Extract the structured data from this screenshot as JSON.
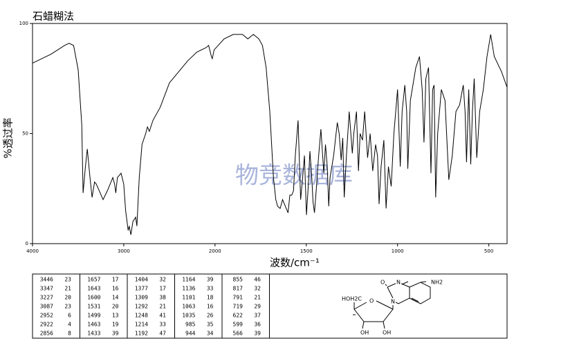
{
  "chart_data": {
    "type": "line",
    "title": "石蜡糊法",
    "watermark": "物竞数据库",
    "xlabel": "波数/cm⁻¹",
    "ylabel": "%透过率",
    "xlim": [
      4000,
      400
    ],
    "xticks": [
      4000,
      3000,
      2000,
      1500,
      1000,
      500
    ],
    "ylim": [
      0,
      100
    ],
    "yticks": [
      0,
      50,
      100
    ],
    "color": "#000000",
    "x": [
      4000,
      3800,
      3650,
      3600,
      3550,
      3500,
      3460,
      3446,
      3420,
      3400,
      3370,
      3347,
      3320,
      3300,
      3227,
      3180,
      3120,
      3100,
      3087,
      3070,
      3030,
      3000,
      2980,
      2952,
      2940,
      2922,
      2900,
      2870,
      2856,
      2830,
      2800,
      2760,
      2740,
      2720,
      2680,
      2600,
      2500,
      2400,
      2300,
      2200,
      2100,
      2070,
      2040,
      2030,
      2010,
      1950,
      1900,
      1850,
      1820,
      1790,
      1760,
      1740,
      1720,
      1700,
      1680,
      1667,
      1657,
      1643,
      1630,
      1620,
      1600,
      1590,
      1580,
      1570,
      1560,
      1545,
      1531,
      1520,
      1510,
      1499,
      1490,
      1480,
      1470,
      1463,
      1455,
      1445,
      1433,
      1420,
      1404,
      1395,
      1385,
      1377,
      1370,
      1350,
      1330,
      1320,
      1309,
      1300,
      1292,
      1280,
      1265,
      1248,
      1240,
      1225,
      1214,
      1205,
      1192,
      1180,
      1164,
      1150,
      1136,
      1120,
      1110,
      1101,
      1090,
      1075,
      1063,
      1050,
      1035,
      1020,
      1000,
      985,
      975,
      960,
      950,
      944,
      930,
      900,
      880,
      865,
      855,
      845,
      830,
      817,
      808,
      800,
      791,
      780,
      760,
      740,
      719,
      700,
      680,
      660,
      640,
      630,
      622,
      610,
      599,
      590,
      580,
      566,
      550,
      530,
      510,
      490,
      470,
      430,
      400
    ],
    "values": [
      82,
      86,
      90,
      91,
      90,
      79,
      54,
      23,
      35,
      43,
      30,
      21,
      28,
      27,
      20,
      24,
      30,
      27,
      23,
      30,
      32,
      27,
      15,
      6,
      8,
      4,
      10,
      12,
      8,
      30,
      45,
      50,
      53,
      51,
      56,
      62,
      73,
      78,
      83,
      87,
      89,
      90,
      85,
      84,
      88,
      93,
      95,
      95,
      93,
      95,
      93,
      90,
      80,
      60,
      30,
      20,
      17,
      16,
      20,
      18,
      14,
      22,
      22,
      24,
      40,
      56,
      20,
      30,
      40,
      13,
      25,
      42,
      30,
      19,
      14,
      25,
      39,
      52,
      32,
      45,
      35,
      17,
      30,
      40,
      55,
      50,
      38,
      48,
      21,
      40,
      60,
      41,
      50,
      60,
      33,
      50,
      47,
      60,
      39,
      50,
      33,
      45,
      40,
      18,
      35,
      47,
      16,
      35,
      26,
      50,
      70,
      35,
      60,
      72,
      60,
      34,
      65,
      80,
      85,
      70,
      46,
      75,
      80,
      32,
      70,
      72,
      21,
      50,
      70,
      65,
      29,
      40,
      60,
      63,
      72,
      60,
      37,
      70,
      36,
      60,
      75,
      39,
      60,
      70,
      85,
      95,
      85,
      78,
      71
    ],
    "peak_table": [
      [
        [
          "3446",
          "23"
        ],
        [
          "3347",
          "21"
        ],
        [
          "3227",
          "20"
        ],
        [
          "3087",
          "23"
        ],
        [
          "2952",
          "6"
        ],
        [
          "2922",
          "4"
        ],
        [
          "2856",
          "8"
        ]
      ],
      [
        [
          "1657",
          "17"
        ],
        [
          "1643",
          "16"
        ],
        [
          "1600",
          "14"
        ],
        [
          "1531",
          "20"
        ],
        [
          "1499",
          "13"
        ],
        [
          "1463",
          "19"
        ],
        [
          "1433",
          "39"
        ]
      ],
      [
        [
          "1404",
          "32"
        ],
        [
          "1377",
          "17"
        ],
        [
          "1309",
          "38"
        ],
        [
          "1292",
          "21"
        ],
        [
          "1248",
          "41"
        ],
        [
          "1214",
          "33"
        ],
        [
          "1192",
          "47"
        ]
      ],
      [
        [
          "1164",
          "39"
        ],
        [
          "1136",
          "33"
        ],
        [
          "1101",
          "18"
        ],
        [
          "1063",
          "16"
        ],
        [
          "1035",
          "26"
        ],
        [
          "985",
          "35"
        ],
        [
          "944",
          "34"
        ]
      ],
      [
        [
          "855",
          "46"
        ],
        [
          "817",
          "32"
        ],
        [
          "791",
          "21"
        ],
        [
          "719",
          "29"
        ],
        [
          "622",
          "37"
        ],
        [
          "599",
          "36"
        ],
        [
          "566",
          "39"
        ]
      ]
    ],
    "structure_labels": [
      "N",
      "N",
      "O",
      "NH2",
      "HOH2C",
      "O",
      "OH",
      "OH"
    ]
  }
}
